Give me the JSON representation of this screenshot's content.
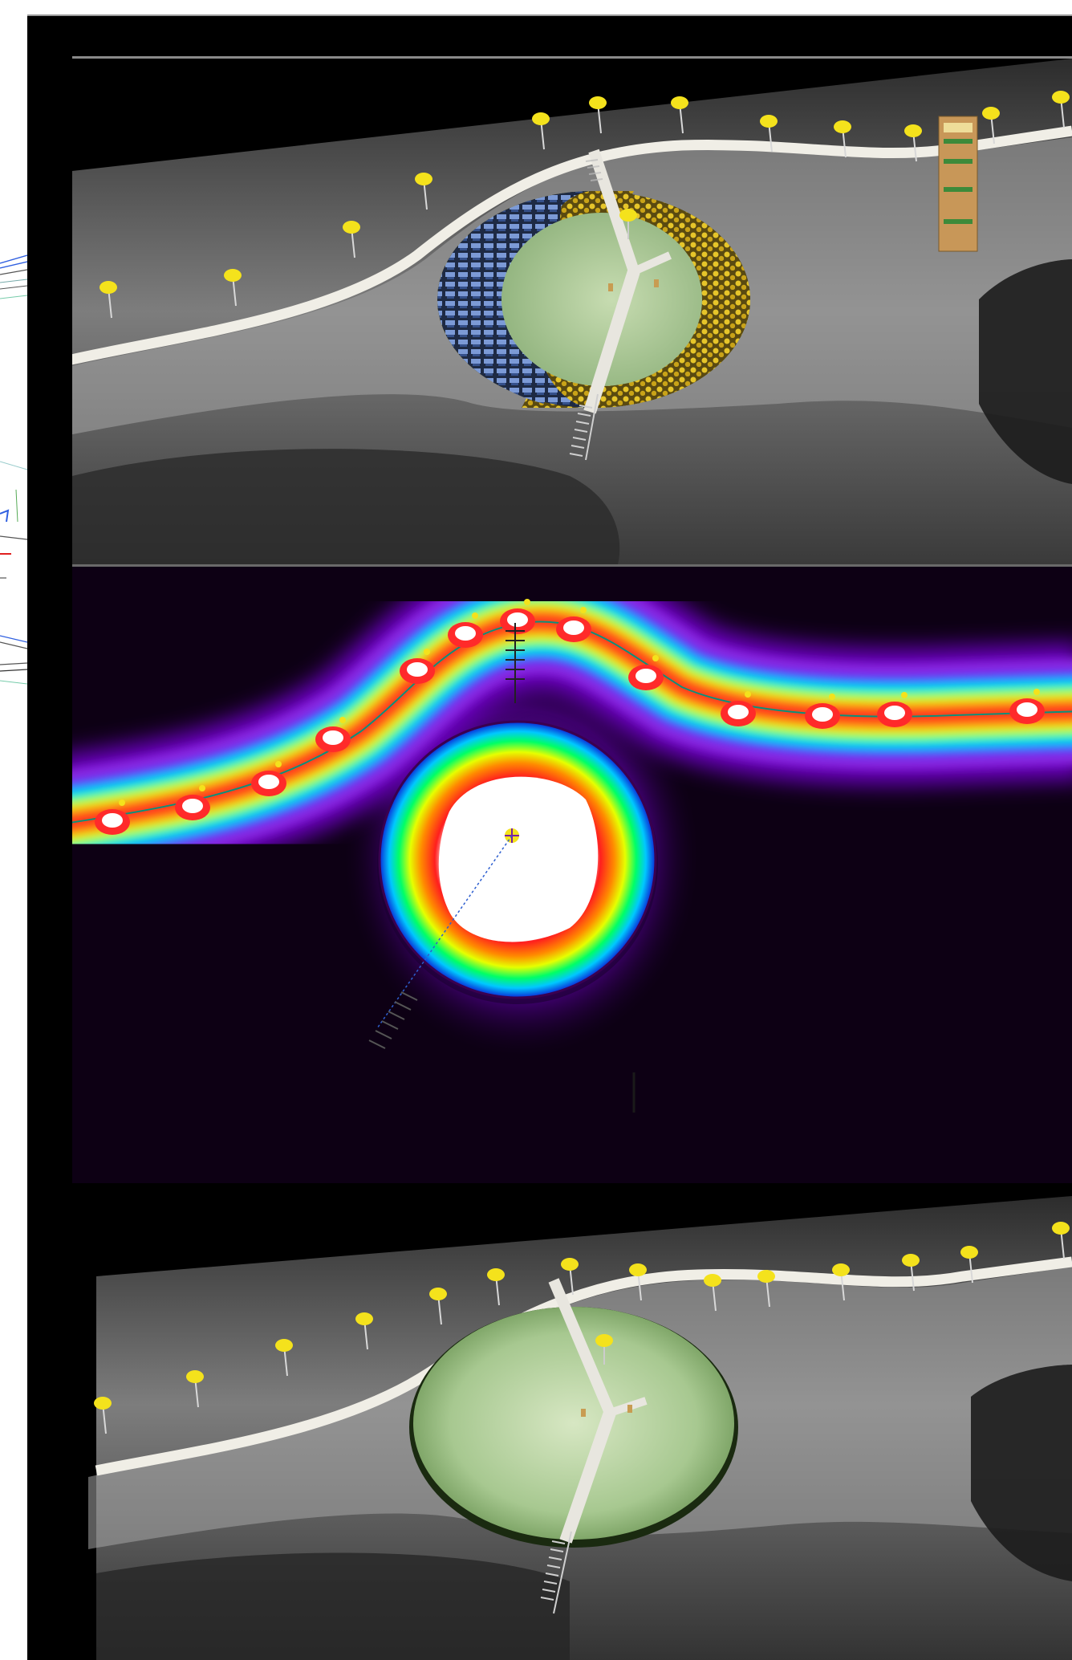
{
  "window": {
    "title": ""
  },
  "colors": {
    "frame": "#000000",
    "frame_border": "#9a9a9a",
    "ground_dark": "#1a1a1a",
    "path": "#e8e6df",
    "lawn": "#a8c98c",
    "lamp": "#f4e21c",
    "shrub_yellow": "#d9b92a",
    "shrub_blue": "#6f8ec9",
    "false_color_scale": [
      "#000000",
      "#5a00a0",
      "#8a2be2",
      "#0000ff",
      "#00c8ff",
      "#00ff66",
      "#c8ff00",
      "#ffd200",
      "#ff7a00",
      "#ff1e1e",
      "#ffffff"
    ]
  },
  "icons": {
    "lamp": "street-lamp-icon",
    "bench": "bench-icon",
    "sign": "info-sign-icon"
  },
  "panels": [
    {
      "id": "top",
      "view": "rendered-color"
    },
    {
      "id": "middle",
      "view": "illuminance-false-color"
    },
    {
      "id": "bottom",
      "view": "rendered-lawn-only"
    }
  ]
}
